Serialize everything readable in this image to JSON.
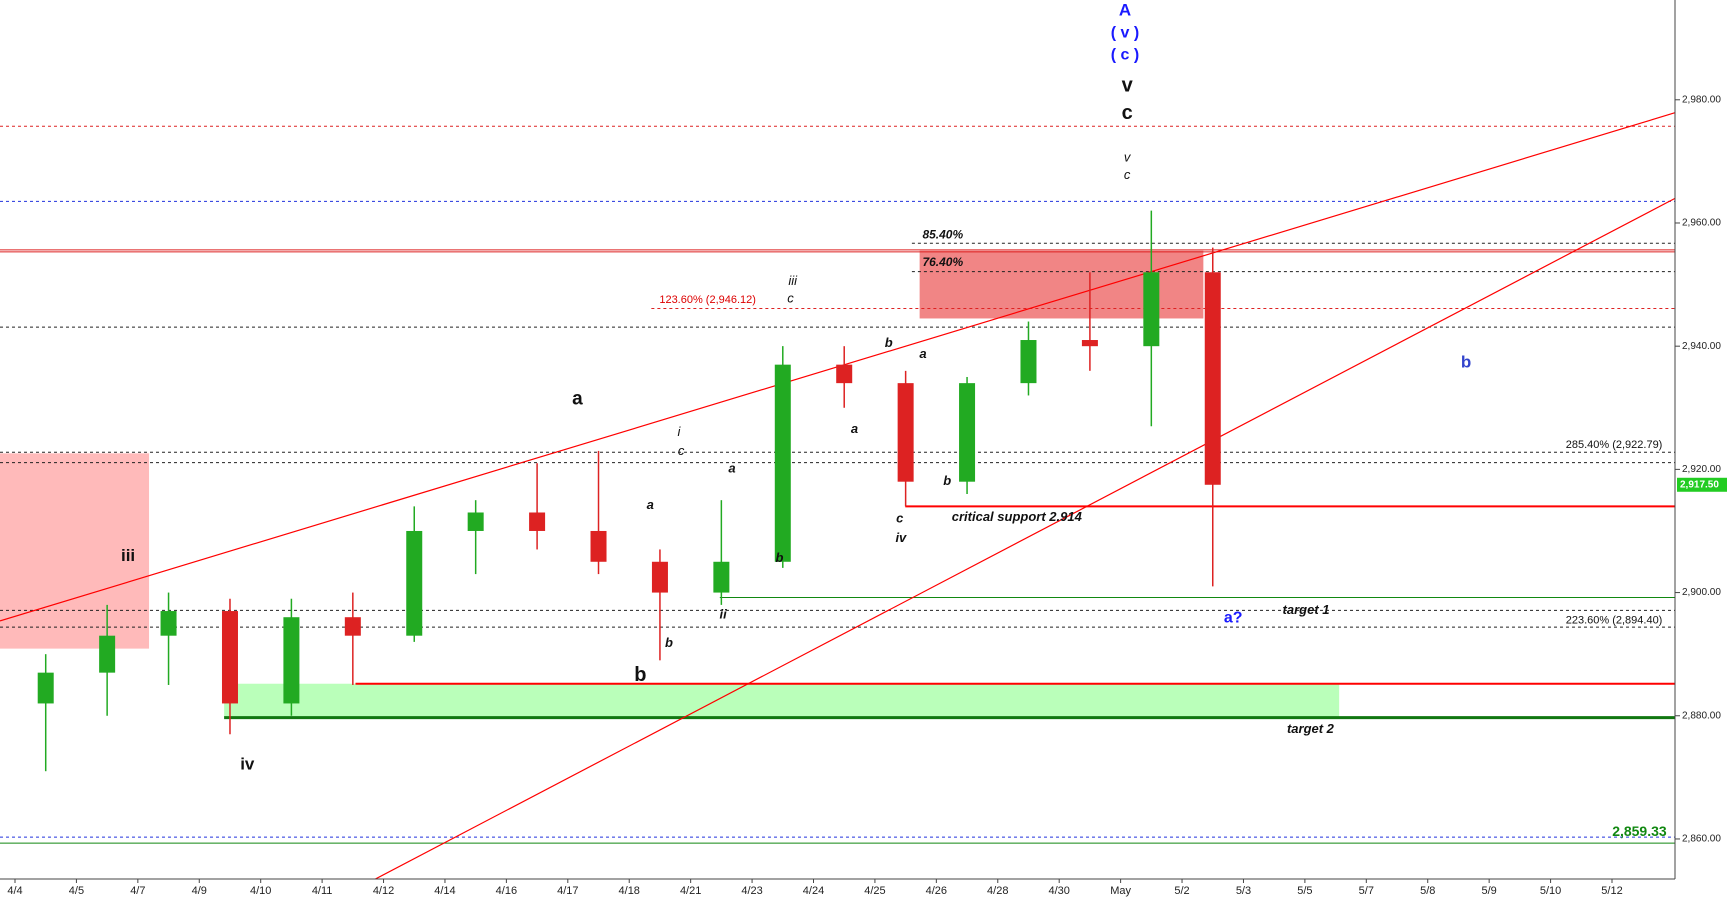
{
  "chart_data": {
    "type": "candlestick",
    "categories": [
      "4/4",
      "4/5",
      "4/7",
      "4/9",
      "4/10",
      "4/11",
      "4/12",
      "4/14",
      "4/16",
      "4/17",
      "4/18",
      "4/21",
      "4/23",
      "4/24",
      "4/25",
      "4/26",
      "4/28",
      "4/30",
      "May",
      "5/2",
      "5/3",
      "5/5",
      "5/7",
      "5/8",
      "5/9",
      "5/10",
      "5/12"
    ],
    "open": [
      2882,
      2887,
      2893,
      2897,
      2882,
      2896,
      2893,
      2910,
      2913,
      2910,
      2905,
      2900,
      2905,
      2937,
      2934,
      2918,
      2934,
      2941,
      2940,
      2952,
      null,
      null,
      null,
      null,
      null,
      null,
      null
    ],
    "high": [
      2890,
      2898,
      2900,
      2899,
      2899,
      2900,
      2914,
      2915,
      2921,
      2923,
      2907,
      2915,
      2940,
      2940,
      2936,
      2935,
      2944,
      2952,
      2962,
      2956,
      null,
      null,
      null,
      null,
      null,
      null,
      null
    ],
    "low": [
      2871,
      2880,
      2885,
      2877,
      2880,
      2885,
      2892,
      2903,
      2907,
      2903,
      2889,
      2898,
      2904,
      2930,
      2914,
      2916,
      2932,
      2936,
      2927,
      2901,
      null,
      null,
      null,
      null,
      null,
      null,
      null
    ],
    "close": [
      2887,
      2893,
      2897,
      2882,
      2896,
      2893,
      2910,
      2913,
      2910,
      2905,
      2900,
      2905,
      2937,
      2934,
      2918,
      2934,
      2941,
      2940,
      2952,
      2917.5,
      null,
      null,
      null,
      null,
      null,
      null,
      null
    ],
    "up_color": "#22aa22",
    "down_color": "#dd2222",
    "ylim": [
      2853.5,
      2996.2
    ],
    "yticks": [
      {
        "value": 2860,
        "label": "2,860.00"
      },
      {
        "value": 2880,
        "label": "2,880.00"
      },
      {
        "value": 2900,
        "label": "2,900.00"
      },
      {
        "value": 2920,
        "label": "2,920.00"
      },
      {
        "value": 2940,
        "label": "2,940.00"
      },
      {
        "value": 2960,
        "label": "2,960.00"
      },
      {
        "value": 2980,
        "label": "2,980.00"
      }
    ],
    "last_price": {
      "value": 2917.5,
      "label": "2,917.50"
    },
    "levels": [
      {
        "value": 2975.7,
        "color": "#dd2222",
        "style": "dashed"
      },
      {
        "value": 2963.5,
        "color": "#2233dd",
        "style": "dashed"
      },
      {
        "value": 2955.3,
        "color": "#dd2222",
        "style": "double"
      },
      {
        "value": 2956.7,
        "color": "#222222",
        "style": "dashed"
      },
      {
        "value": 2952.1,
        "color": "#222222",
        "style": "dashed"
      },
      {
        "value": 2946.12,
        "color": "#dd2222",
        "style": "dashed"
      },
      {
        "value": 2943.1,
        "color": "#222222",
        "style": "dashed"
      },
      {
        "value": 2922.79,
        "color": "#222222",
        "style": "dashed"
      },
      {
        "value": 2921.1,
        "color": "#222222",
        "style": "dashed"
      },
      {
        "value": 2914,
        "color": "#ff0000",
        "style": "solid"
      },
      {
        "value": 2899.2,
        "color": "#118811",
        "style": "solid"
      },
      {
        "value": 2897.1,
        "color": "#222222",
        "style": "dashed"
      },
      {
        "value": 2894.4,
        "color": "#222222",
        "style": "dashed"
      },
      {
        "value": 2885.2,
        "color": "#ff0000",
        "style": "solid"
      },
      {
        "value": 2879.7,
        "color": "#117711",
        "style": "thick"
      },
      {
        "value": 2860.3,
        "color": "#2233dd",
        "style": "dashed"
      },
      {
        "value": 2859.33,
        "color": "#118811",
        "style": "solid"
      }
    ],
    "zones": [
      {
        "values": [
          2922.6,
          2890.9
        ],
        "color": "#ffb3b3"
      },
      {
        "values": [
          2955.5,
          2944.5
        ],
        "color": "#f07878"
      },
      {
        "values": [
          2885.2,
          2879.7
        ],
        "color": "#b3ffb3"
      }
    ],
    "trendlines": [
      {
        "values": [
          2895.4,
          2977.9
        ],
        "color": "#ff0000"
      },
      {
        "values": [
          2853.5,
          2964.0
        ],
        "color": "#ff0000"
      }
    ],
    "annotations": [
      {
        "text": "A",
        "color": "#1a1aff"
      },
      {
        "text": "( v )",
        "color": "#1a1aff"
      },
      {
        "text": "( c )",
        "color": "#1a1aff"
      },
      {
        "text": "v",
        "color": "#111111"
      },
      {
        "text": "c",
        "color": "#111111"
      },
      {
        "text": "v",
        "color": "#111111"
      },
      {
        "text": "c",
        "color": "#111111"
      },
      {
        "text": "85.40%",
        "color": "#111111"
      },
      {
        "text": "76.40%",
        "color": "#111111"
      },
      {
        "text": "123.60% (2,946.12)",
        "color": "#dd0000"
      },
      {
        "text": "iii",
        "color": "#111111"
      },
      {
        "text": "c",
        "color": "#111111"
      },
      {
        "text": "b",
        "color": "#111111"
      },
      {
        "text": "a",
        "color": "#111111"
      },
      {
        "text": "b",
        "color": "#3344cc"
      },
      {
        "text": "a",
        "color": "#111111"
      },
      {
        "text": "285.40% (2,922.79)",
        "color": "#111111"
      },
      {
        "text": "i",
        "color": "#111111"
      },
      {
        "text": "c",
        "color": "#111111"
      },
      {
        "text": "a",
        "color": "#111111"
      },
      {
        "text": "a",
        "color": "#111111"
      },
      {
        "text": "a",
        "color": "#111111"
      },
      {
        "text": "b",
        "color": "#111111"
      },
      {
        "text": "c",
        "color": "#111111"
      },
      {
        "text": "iv",
        "color": "#111111"
      },
      {
        "text": "critical support 2.914",
        "color": "#111111"
      },
      {
        "text": "iii",
        "color": "#111111"
      },
      {
        "text": "b",
        "color": "#111111"
      },
      {
        "text": "ii",
        "color": "#111111"
      },
      {
        "text": "b",
        "color": "#111111"
      },
      {
        "text": "b",
        "color": "#111111"
      },
      {
        "text": "a?",
        "color": "#1a1aff"
      },
      {
        "text": "target 1",
        "color": "#111111"
      },
      {
        "text": "223.60% (2,894.40)",
        "color": "#111111"
      },
      {
        "text": "target 2",
        "color": "#111111"
      },
      {
        "text": "iv",
        "color": "#111111"
      },
      {
        "text": "2,859.33",
        "color": "#118811"
      }
    ]
  }
}
